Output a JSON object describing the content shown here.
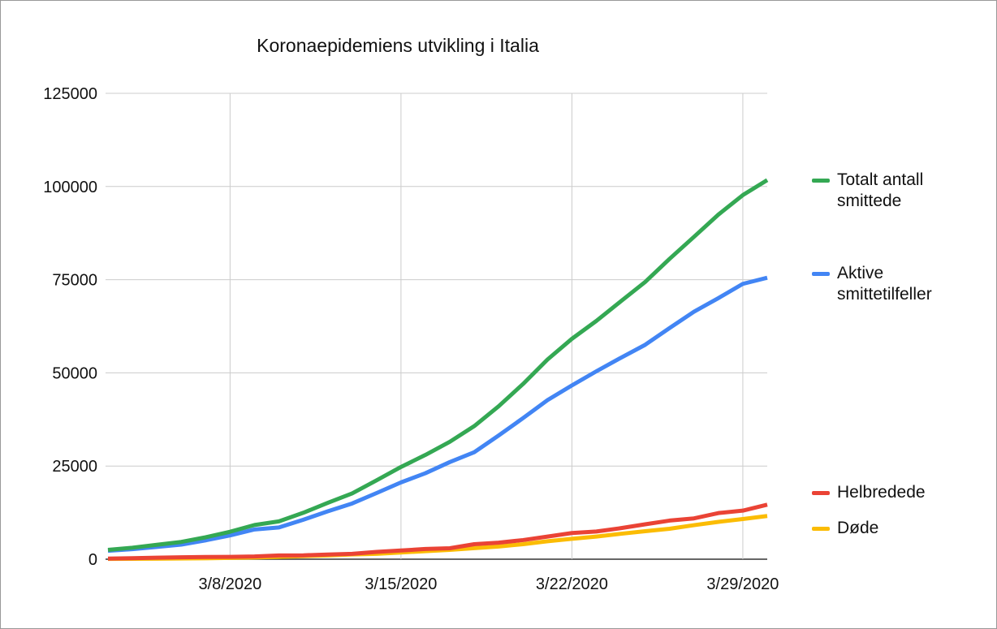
{
  "chart_data": {
    "type": "line",
    "title": "Koronaepidemiens utvikling i Italia",
    "x": [
      "3/3/2020",
      "3/4/2020",
      "3/5/2020",
      "3/6/2020",
      "3/7/2020",
      "3/8/2020",
      "3/9/2020",
      "3/10/2020",
      "3/11/2020",
      "3/12/2020",
      "3/13/2020",
      "3/14/2020",
      "3/15/2020",
      "3/16/2020",
      "3/17/2020",
      "3/18/2020",
      "3/19/2020",
      "3/20/2020",
      "3/21/2020",
      "3/22/2020",
      "3/23/2020",
      "3/24/2020",
      "3/25/2020",
      "3/26/2020",
      "3/27/2020",
      "3/28/2020",
      "3/29/2020",
      "3/30/2020"
    ],
    "xticks": [
      "3/8/2020",
      "3/15/2020",
      "3/22/2020",
      "3/29/2020"
    ],
    "ylim": [
      0,
      125000
    ],
    "yticks": [
      0,
      25000,
      50000,
      75000,
      100000,
      125000
    ],
    "grid": true,
    "legend": "right",
    "series": [
      {
        "name": "Totalt antall smittede",
        "color": "#34a853",
        "values": [
          2502,
          3089,
          3858,
          4636,
          5883,
          7375,
          9172,
          10149,
          12462,
          15113,
          17660,
          21157,
          24747,
          27980,
          31506,
          35713,
          41035,
          47021,
          53578,
          59138,
          63927,
          69176,
          74386,
          80589,
          86498,
          92472,
          97689,
          101739
        ]
      },
      {
        "name": "Aktive smittetilfeller",
        "color": "#4285f4",
        "values": [
          2263,
          2706,
          3296,
          3916,
          5061,
          6387,
          7985,
          8514,
          10590,
          12839,
          14955,
          17750,
          20603,
          23073,
          26062,
          28710,
          33190,
          37860,
          42681,
          46638,
          50418,
          54030,
          57521,
          62013,
          66414,
          70065,
          73880,
          75528
        ]
      },
      {
        "name": "Helbredede",
        "color": "#ea4335",
        "values": [
          160,
          276,
          414,
          523,
          589,
          622,
          724,
          1004,
          1045,
          1258,
          1439,
          1966,
          2335,
          2749,
          2941,
          4025,
          4440,
          5129,
          6072,
          7024,
          7432,
          8326,
          9362,
          10361,
          10950,
          12384,
          13030,
          14620
        ]
      },
      {
        "name": "Døde",
        "color": "#fbbc04",
        "values": [
          79,
          107,
          148,
          197,
          233,
          366,
          463,
          631,
          827,
          1016,
          1266,
          1441,
          1809,
          2158,
          2503,
          2978,
          3405,
          4032,
          4825,
          5476,
          6077,
          6820,
          7503,
          8165,
          9134,
          10023,
          10779,
          11591
        ]
      }
    ]
  }
}
